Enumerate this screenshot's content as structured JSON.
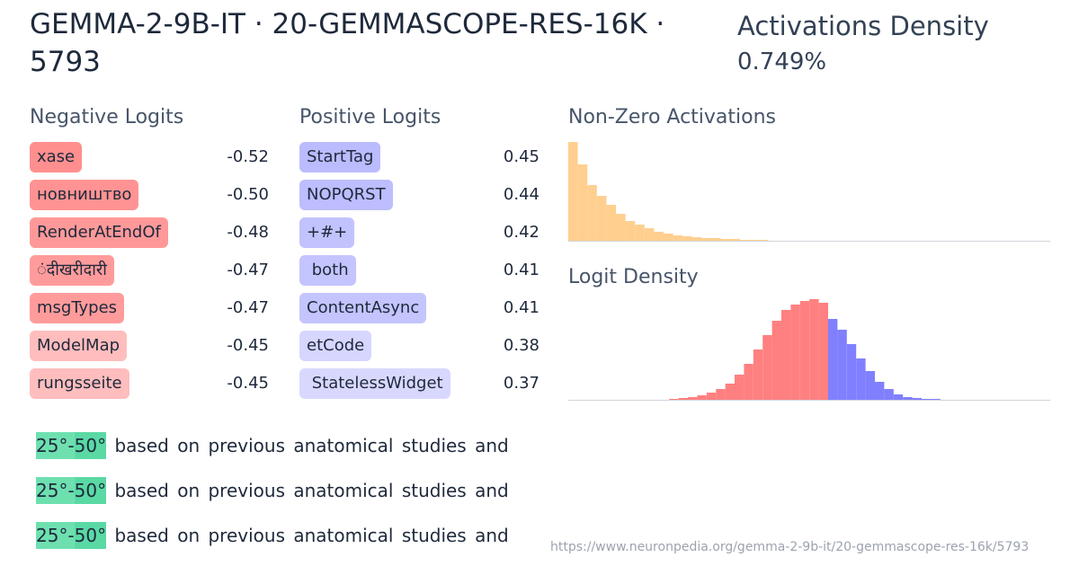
{
  "header": {
    "title": "GEMMA-2-9B-IT · 20-GEMMASCOPE-RES-16K · 5793",
    "density_label": "Activations Density",
    "density_value": "0.749%"
  },
  "negative_logits": {
    "title": "Negative Logits",
    "items": [
      {
        "token": "xase",
        "value": "-0.52",
        "color": "#ff8f8f"
      },
      {
        "token": "новништво",
        "value": "-0.50",
        "color": "#ff9393"
      },
      {
        "token": "RenderAtEndOf",
        "value": "-0.48",
        "color": "#ff9999"
      },
      {
        "token": "ंदीखरीदारी",
        "value": "-0.47",
        "color": "#ff9b9b"
      },
      {
        "token": "msgTypes",
        "value": "-0.47",
        "color": "#ff9b9b"
      },
      {
        "token": "ModelMap",
        "value": "-0.45",
        "color": "#ffbdbd"
      },
      {
        "token": "rungsseite",
        "value": "-0.45",
        "color": "#ffbdbd"
      }
    ]
  },
  "positive_logits": {
    "title": "Positive Logits",
    "items": [
      {
        "token": "StartTag",
        "value": "0.45",
        "color": "#bbbbff"
      },
      {
        "token": "NOPQRST",
        "value": "0.44",
        "color": "#bdbdff"
      },
      {
        "token": "+#+",
        "value": "0.42",
        "color": "#c2c2ff"
      },
      {
        "token": " both",
        "value": "0.41",
        "color": "#c4c4ff"
      },
      {
        "token": "ContentAsync",
        "value": "0.41",
        "color": "#c4c4ff"
      },
      {
        "token": "etCode",
        "value": "0.38",
        "color": "#d6d6ff"
      },
      {
        "token": " StatelessWidget",
        "value": "0.37",
        "color": "#d8d8ff"
      }
    ]
  },
  "activations_histogram": {
    "title": "Non-Zero Activations",
    "color": "#ffcf8f",
    "values": [
      110,
      85,
      62,
      50,
      40,
      30,
      22,
      18,
      14,
      10,
      8,
      6,
      5,
      4,
      3,
      3,
      2,
      2,
      1,
      1,
      1
    ]
  },
  "logit_density": {
    "title": "Logit Density",
    "negative_color": "#ff8080",
    "positive_color": "#8080ff",
    "negative": [
      1,
      2,
      3,
      5,
      8,
      12,
      18,
      28,
      40,
      56,
      72,
      88,
      100,
      106,
      110,
      112,
      108
    ],
    "positive": [
      90,
      78,
      62,
      46,
      32,
      20,
      12,
      6,
      3,
      2,
      1,
      1
    ]
  },
  "examples": [
    {
      "tokens": [
        {
          "text": "25°-",
          "color": "#6ee0b0"
        },
        {
          "text": "50°",
          "color": "#5ad9a5"
        },
        {
          "text": " based on previous anatomical studies and",
          "color": null
        }
      ]
    },
    {
      "tokens": [
        {
          "text": "25°-",
          "color": "#6ee0b0"
        },
        {
          "text": "50°",
          "color": "#5ad9a5"
        },
        {
          "text": " based on previous anatomical studies and",
          "color": null
        }
      ]
    },
    {
      "tokens": [
        {
          "text": "25°-",
          "color": "#6ee0b0"
        },
        {
          "text": "50°",
          "color": "#5ad9a5"
        },
        {
          "text": " based on previous anatomical studies and",
          "color": null
        }
      ]
    }
  ],
  "footer": {
    "url": "https://www.neuronpedia.org/gemma-2-9b-it/20-gemmascope-res-16k/5793"
  }
}
